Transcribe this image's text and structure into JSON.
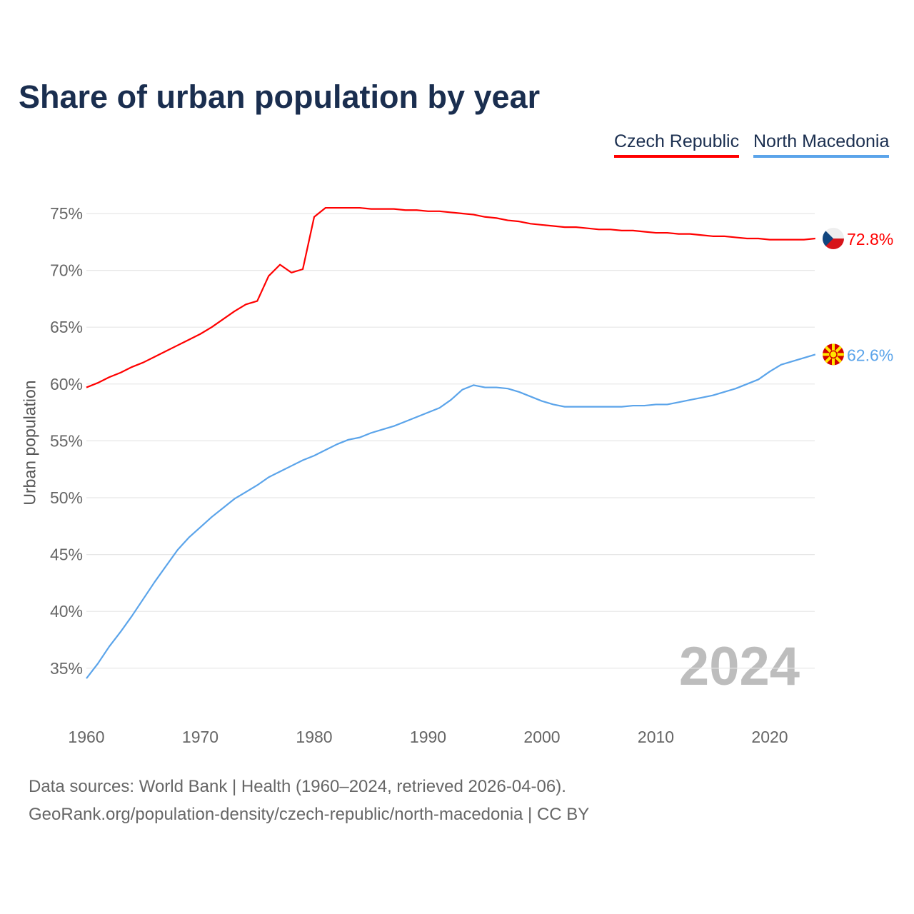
{
  "chart_data": {
    "type": "line",
    "title": "Share of urban population by year",
    "ylabel": "Urban population",
    "xlabel": "",
    "ylim": [
      32,
      77
    ],
    "xlim": [
      1960,
      2024
    ],
    "yticks": [
      "35%",
      "40%",
      "45%",
      "50%",
      "55%",
      "60%",
      "65%",
      "70%",
      "75%"
    ],
    "ytick_values": [
      35,
      40,
      45,
      50,
      55,
      60,
      65,
      70,
      75
    ],
    "xticks": [
      "1960",
      "1970",
      "1980",
      "1990",
      "2000",
      "2010",
      "2020"
    ],
    "xtick_values": [
      1960,
      1970,
      1980,
      1990,
      2000,
      2010,
      2020
    ],
    "grid": true,
    "legend_placement": "top-right",
    "current_year": "2024",
    "series": [
      {
        "name": "Czech Republic",
        "color": "#ff0000",
        "end_label": "72.8%",
        "flag": "czech-flag",
        "values": [
          59.7,
          60.1,
          60.6,
          61.0,
          61.5,
          61.9,
          62.4,
          62.9,
          63.4,
          63.9,
          64.4,
          65.0,
          65.7,
          66.4,
          67.0,
          67.3,
          69.5,
          70.5,
          69.8,
          70.1,
          74.7,
          75.5,
          75.5,
          75.5,
          75.5,
          75.4,
          75.4,
          75.4,
          75.3,
          75.3,
          75.2,
          75.2,
          75.1,
          75.0,
          74.9,
          74.7,
          74.6,
          74.4,
          74.3,
          74.1,
          74.0,
          73.9,
          73.8,
          73.8,
          73.7,
          73.6,
          73.6,
          73.5,
          73.5,
          73.4,
          73.3,
          73.3,
          73.2,
          73.2,
          73.1,
          73.0,
          73.0,
          72.9,
          72.8,
          72.8,
          72.7,
          72.7,
          72.7,
          72.7,
          72.8
        ]
      },
      {
        "name": "North Macedonia",
        "color": "#5ba4ea",
        "end_label": "62.6%",
        "flag": "north-macedonia-flag",
        "values": [
          34.1,
          35.4,
          36.9,
          38.2,
          39.6,
          41.1,
          42.6,
          44.0,
          45.4,
          46.5,
          47.4,
          48.3,
          49.1,
          49.9,
          50.5,
          51.1,
          51.8,
          52.3,
          52.8,
          53.3,
          53.7,
          54.2,
          54.7,
          55.1,
          55.3,
          55.7,
          56.0,
          56.3,
          56.7,
          57.1,
          57.5,
          57.9,
          58.6,
          59.5,
          59.9,
          59.7,
          59.7,
          59.6,
          59.3,
          58.9,
          58.5,
          58.2,
          58.0,
          58.0,
          58.0,
          58.0,
          58.0,
          58.0,
          58.1,
          58.1,
          58.2,
          58.2,
          58.4,
          58.6,
          58.8,
          59.0,
          59.3,
          59.6,
          60.0,
          60.4,
          61.1,
          61.7,
          62.0,
          62.3,
          62.6
        ]
      }
    ]
  },
  "footer": {
    "line1": "Data sources: World Bank | Health (1960–2024, retrieved 2026-04-06).",
    "line2": "GeoRank.org/population-density/czech-republic/north-macedonia | CC BY"
  }
}
